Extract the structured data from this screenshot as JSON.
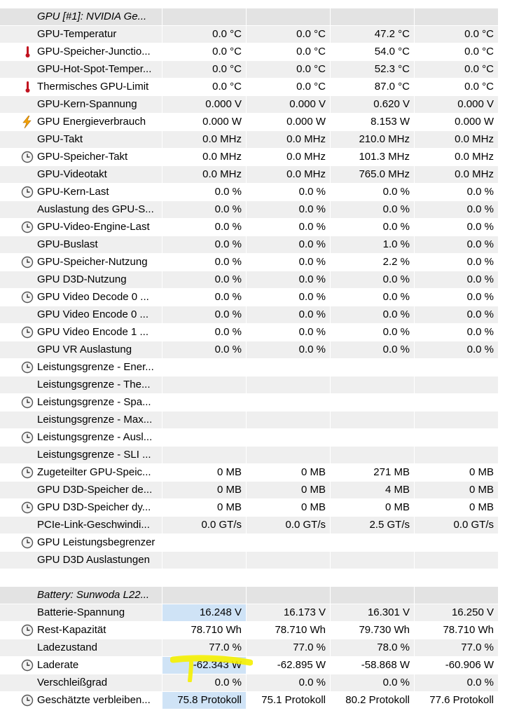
{
  "groups": [
    {
      "title": "GPU [#1]: NVIDIA Ge...",
      "icon": "chip-icon",
      "rows": [
        {
          "icon": "thermometer-icon",
          "name": "GPU-Temperatur",
          "values": [
            "0.0 °C",
            "0.0 °C",
            "47.2 °C",
            "0.0 °C"
          ]
        },
        {
          "icon": "thermometer-icon",
          "name": "GPU-Speicher-Junctio...",
          "values": [
            "0.0 °C",
            "0.0 °C",
            "54.0 °C",
            "0.0 °C"
          ]
        },
        {
          "icon": "thermometer-icon",
          "name": "GPU-Hot-Spot-Temper...",
          "values": [
            "0.0 °C",
            "0.0 °C",
            "52.3 °C",
            "0.0 °C"
          ]
        },
        {
          "icon": "thermometer-icon",
          "name": "Thermisches GPU-Limit",
          "values": [
            "0.0 °C",
            "0.0 °C",
            "87.0 °C",
            "0.0 °C"
          ]
        },
        {
          "icon": "lightning-icon",
          "name": "GPU-Kern-Spannung",
          "values": [
            "0.000 V",
            "0.000 V",
            "0.620 V",
            "0.000 V"
          ]
        },
        {
          "icon": "lightning-icon",
          "name": "GPU Energieverbrauch",
          "values": [
            "0.000 W",
            "0.000 W",
            "8.153 W",
            "0.000 W"
          ]
        },
        {
          "icon": "clock-icon",
          "name": "GPU-Takt",
          "values": [
            "0.0 MHz",
            "0.0 MHz",
            "210.0 MHz",
            "0.0 MHz"
          ]
        },
        {
          "icon": "clock-icon",
          "name": "GPU-Speicher-Takt",
          "values": [
            "0.0 MHz",
            "0.0 MHz",
            "101.3 MHz",
            "0.0 MHz"
          ]
        },
        {
          "icon": "clock-icon",
          "name": "GPU-Videotakt",
          "values": [
            "0.0 MHz",
            "0.0 MHz",
            "765.0 MHz",
            "0.0 MHz"
          ]
        },
        {
          "icon": "clock-icon",
          "name": "GPU-Kern-Last",
          "values": [
            "0.0 %",
            "0.0 %",
            "0.0 %",
            "0.0 %"
          ]
        },
        {
          "icon": "clock-icon",
          "name": "Auslastung des GPU-S...",
          "values": [
            "0.0 %",
            "0.0 %",
            "0.0 %",
            "0.0 %"
          ]
        },
        {
          "icon": "clock-icon",
          "name": "GPU-Video-Engine-Last",
          "values": [
            "0.0 %",
            "0.0 %",
            "0.0 %",
            "0.0 %"
          ]
        },
        {
          "icon": "clock-icon",
          "name": "GPU-Buslast",
          "values": [
            "0.0 %",
            "0.0 %",
            "1.0 %",
            "0.0 %"
          ]
        },
        {
          "icon": "clock-icon",
          "name": "GPU-Speicher-Nutzung",
          "values": [
            "0.0 %",
            "0.0 %",
            "2.2 %",
            "0.0 %"
          ]
        },
        {
          "icon": "clock-icon",
          "name": "GPU D3D-Nutzung",
          "values": [
            "0.0 %",
            "0.0 %",
            "0.0 %",
            "0.0 %"
          ]
        },
        {
          "icon": "clock-icon",
          "name": "GPU Video Decode 0 ...",
          "values": [
            "0.0 %",
            "0.0 %",
            "0.0 %",
            "0.0 %"
          ]
        },
        {
          "icon": "clock-icon",
          "name": "GPU Video Encode 0 ...",
          "values": [
            "0.0 %",
            "0.0 %",
            "0.0 %",
            "0.0 %"
          ]
        },
        {
          "icon": "clock-icon",
          "name": "GPU Video Encode 1 ...",
          "values": [
            "0.0 %",
            "0.0 %",
            "0.0 %",
            "0.0 %"
          ]
        },
        {
          "icon": "clock-icon",
          "name": "GPU VR Auslastung",
          "values": [
            "0.0 %",
            "0.0 %",
            "0.0 %",
            "0.0 %"
          ]
        },
        {
          "icon": "clock-icon",
          "name": "Leistungsgrenze - Ener...",
          "values": [
            "",
            "",
            "",
            ""
          ]
        },
        {
          "icon": "clock-icon",
          "name": "Leistungsgrenze - The...",
          "values": [
            "",
            "",
            "",
            ""
          ]
        },
        {
          "icon": "clock-icon",
          "name": "Leistungsgrenze - Spa...",
          "values": [
            "",
            "",
            "",
            ""
          ]
        },
        {
          "icon": "clock-icon",
          "name": "Leistungsgrenze - Max...",
          "values": [
            "",
            "",
            "",
            ""
          ]
        },
        {
          "icon": "clock-icon",
          "name": "Leistungsgrenze - Ausl...",
          "values": [
            "",
            "",
            "",
            ""
          ]
        },
        {
          "icon": "clock-icon",
          "name": "Leistungsgrenze - SLI ...",
          "values": [
            "",
            "",
            "",
            ""
          ]
        },
        {
          "icon": "clock-icon",
          "name": "Zugeteilter GPU-Speic...",
          "values": [
            "0 MB",
            "0 MB",
            "271 MB",
            "0 MB"
          ]
        },
        {
          "icon": "clock-icon",
          "name": "GPU D3D-Speicher de...",
          "values": [
            "0 MB",
            "0 MB",
            "4 MB",
            "0 MB"
          ]
        },
        {
          "icon": "clock-icon",
          "name": "GPU D3D-Speicher dy...",
          "values": [
            "0 MB",
            "0 MB",
            "0 MB",
            "0 MB"
          ]
        },
        {
          "icon": "clock-icon",
          "name": "PCIe-Link-Geschwindi...",
          "values": [
            "0.0 GT/s",
            "0.0 GT/s",
            "2.5 GT/s",
            "0.0 GT/s"
          ]
        },
        {
          "icon": "clock-icon",
          "name": "GPU Leistungsbegrenzer",
          "values": [
            "",
            "",
            "",
            ""
          ]
        },
        {
          "icon": "clock-icon",
          "name": "GPU D3D Auslastungen",
          "values": [
            "",
            "",
            "",
            ""
          ]
        }
      ]
    },
    {
      "title": "Battery: Sunwoda L22...",
      "icon": "chip-icon",
      "rows": [
        {
          "icon": "lightning-icon",
          "name": "Batterie-Spannung",
          "values": [
            "16.248 V",
            "16.173 V",
            "16.301 V",
            "16.250 V"
          ],
          "highlight": [
            0
          ]
        },
        {
          "icon": "clock-icon",
          "name": "Rest-Kapazität",
          "values": [
            "78.710 Wh",
            "78.710 Wh",
            "79.730 Wh",
            "78.710 Wh"
          ]
        },
        {
          "icon": "clock-icon",
          "name": "Ladezustand",
          "values": [
            "77.0 %",
            "77.0 %",
            "78.0 %",
            "77.0 %"
          ]
        },
        {
          "icon": "clock-icon",
          "name": "Laderate",
          "values": [
            "-62.343 W",
            "-62.895 W",
            "-58.868 W",
            "-60.906 W"
          ],
          "highlight": [
            0
          ]
        },
        {
          "icon": "clock-icon",
          "name": "Verschleißgrad",
          "values": [
            "0.0 %",
            "0.0 %",
            "0.0 %",
            "0.0 %"
          ]
        },
        {
          "icon": "clock-icon",
          "name": "Geschätzte verbleiben...",
          "values": [
            "75.8 Protokoll",
            "75.1 Protokoll",
            "80.2 Protokoll",
            "77.6 Protokoll"
          ],
          "highlight": [
            0
          ]
        }
      ]
    }
  ],
  "colors": {
    "row_alt": "#efefef",
    "header_bg": "#e3e3e3",
    "highlight": "#cfe3f6",
    "marker": "#f5f000",
    "thermometer": "#c1121f",
    "lightning": "#f5a300"
  }
}
